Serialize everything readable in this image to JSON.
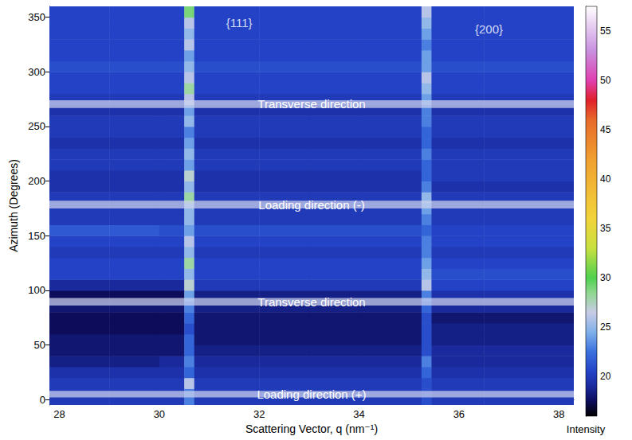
{
  "chart_data": {
    "type": "heatmap",
    "xlabel": "Scattering Vector, q (nm⁻¹)",
    "ylabel": "Azimuth (Degrees)",
    "xlim": [
      27.8,
      38.3
    ],
    "xticks": [
      28,
      30,
      32,
      34,
      36,
      38
    ],
    "ylim": [
      -5,
      360
    ],
    "yticks": [
      0,
      50,
      100,
      150,
      200,
      250,
      300,
      350
    ],
    "q_edges": [
      27.8,
      29,
      30,
      30.5,
      30.7,
      32,
      33,
      34,
      35.25,
      35.45,
      36.5,
      38.3
    ],
    "azimuth_edges": [
      -5,
      10,
      20,
      30,
      40,
      50,
      60,
      70,
      80,
      90,
      100,
      110,
      120,
      130,
      140,
      150,
      160,
      170,
      180,
      190,
      200,
      210,
      220,
      230,
      240,
      250,
      260,
      270,
      280,
      290,
      300,
      310,
      320,
      330,
      340,
      350,
      360
    ],
    "intensity": [
      [
        20,
        20,
        20,
        23,
        20,
        20,
        20,
        20,
        21,
        20,
        20
      ],
      [
        20,
        20,
        20,
        26,
        20,
        20,
        20,
        20,
        21,
        20,
        20
      ],
      [
        19.5,
        19.5,
        19.5,
        22,
        19.5,
        19.5,
        19.5,
        19.5,
        22,
        19.5,
        19.5
      ],
      [
        18.5,
        18.5,
        19,
        23,
        19,
        19,
        19,
        19,
        23,
        19,
        19
      ],
      [
        18,
        18,
        18,
        22,
        18.5,
        18.5,
        18.5,
        18.5,
        21,
        19,
        19
      ],
      [
        18,
        18,
        18,
        22,
        18,
        18,
        18,
        18,
        21,
        18.5,
        18.5
      ],
      [
        17.5,
        17.5,
        17.5,
        21,
        18,
        18,
        18,
        18,
        21,
        18.5,
        18.5
      ],
      [
        17.5,
        17.5,
        17.5,
        22,
        18,
        18,
        18,
        18,
        21,
        18,
        18
      ],
      [
        18,
        18,
        18,
        23,
        18.5,
        18.5,
        18.5,
        18.5,
        22,
        19,
        19
      ],
      [
        17.5,
        17.5,
        17.5,
        24,
        18.5,
        18.5,
        18.5,
        18.5,
        23,
        19.5,
        19.5
      ],
      [
        19,
        19,
        19,
        27,
        20,
        20,
        20,
        20,
        26,
        20.5,
        20.5
      ],
      [
        20.5,
        20.5,
        20.5,
        25,
        20.5,
        20.5,
        20.5,
        20.5,
        25,
        21,
        21
      ],
      [
        20.5,
        20.5,
        20.5,
        28,
        20.5,
        20.5,
        20.5,
        20.5,
        24,
        20.5,
        20.5
      ],
      [
        20,
        20,
        20,
        25,
        20,
        20,
        20,
        20,
        23,
        20,
        20
      ],
      [
        20.5,
        20.5,
        20.5,
        26,
        20.5,
        20.5,
        20.5,
        20.5,
        23,
        20.5,
        20.5
      ],
      [
        21.5,
        21.5,
        21,
        24,
        21,
        21,
        21,
        21,
        22,
        20.5,
        20.5
      ],
      [
        20,
        20,
        20,
        25,
        20,
        20,
        20,
        20,
        23,
        20,
        20
      ],
      [
        20,
        20,
        20,
        25,
        20,
        20,
        20,
        20,
        24,
        20,
        20
      ],
      [
        20,
        20,
        20,
        28,
        20,
        20,
        20,
        20,
        25,
        20,
        20
      ],
      [
        19.5,
        19.5,
        19.5,
        25,
        19.5,
        19.5,
        19.5,
        19.5,
        23,
        19.5,
        19.5
      ],
      [
        19.5,
        19.5,
        19.5,
        27,
        19.5,
        19.5,
        19.5,
        19.5,
        22,
        20,
        20
      ],
      [
        20,
        20,
        20,
        24,
        20,
        20,
        20,
        20,
        22,
        20,
        20
      ],
      [
        20,
        20,
        20,
        25,
        20,
        20,
        20,
        20,
        23,
        20,
        20
      ],
      [
        19.5,
        19.5,
        19.5,
        24,
        19.5,
        19.5,
        19.5,
        19.5,
        22,
        19.5,
        19.5
      ],
      [
        20,
        20,
        20,
        23,
        20,
        20,
        20,
        20,
        22,
        20,
        20
      ],
      [
        20,
        20,
        20,
        25,
        20,
        20,
        20,
        20,
        23,
        20,
        20
      ],
      [
        19.5,
        19.5,
        19.5,
        24,
        19.5,
        19.5,
        19.5,
        19.5,
        23,
        19.5,
        19.5
      ],
      [
        20,
        20,
        20,
        26,
        20,
        20,
        20,
        20,
        24,
        20,
        20
      ],
      [
        20.5,
        20.5,
        20.5,
        28,
        20.5,
        20.5,
        20.5,
        20.5,
        25,
        20.5,
        20.5
      ],
      [
        20.5,
        20.5,
        20.5,
        26,
        20.5,
        20.5,
        20.5,
        20.5,
        26,
        20.5,
        20.5
      ],
      [
        21,
        21,
        21,
        25,
        21,
        21,
        21,
        21,
        24,
        21,
        21
      ],
      [
        20.5,
        20.5,
        20.5,
        24,
        20.5,
        20.5,
        20.5,
        20.5,
        24,
        20.5,
        20.5
      ],
      [
        20.5,
        20.5,
        20.5,
        26,
        20.5,
        20.5,
        20.5,
        20.5,
        23,
        20.5,
        20.5
      ],
      [
        20.5,
        20.5,
        20.5,
        25,
        20.5,
        20.5,
        20.5,
        20.5,
        24,
        20.5,
        20.5
      ],
      [
        20.5,
        20.5,
        20.5,
        26,
        20.5,
        20.5,
        20.5,
        20.5,
        25,
        20.5,
        20.5
      ],
      [
        20.5,
        20.5,
        20.5,
        29,
        20.5,
        20.5,
        20.5,
        20.5,
        26,
        20.5,
        20.5
      ]
    ],
    "colorbar": {
      "label": "Intensity",
      "range": [
        16,
        57.5
      ],
      "ticks": [
        20,
        25,
        30,
        35,
        40,
        45,
        50,
        55
      ]
    },
    "bands": [
      {
        "text": "Loading direction (+)",
        "azimuth": [
          2,
          8
        ]
      },
      {
        "text": "Transverse direction",
        "azimuth": [
          86,
          93
        ]
      },
      {
        "text": "Loading direction (-)",
        "azimuth": [
          175,
          182
        ]
      },
      {
        "text": "Transverse direction",
        "azimuth": [
          267,
          274
        ]
      }
    ],
    "annotations": [
      {
        "text": "{111}",
        "q": 31.6,
        "azimuth": 345
      },
      {
        "text": "{200}",
        "q": 36.6,
        "azimuth": 339
      }
    ]
  }
}
